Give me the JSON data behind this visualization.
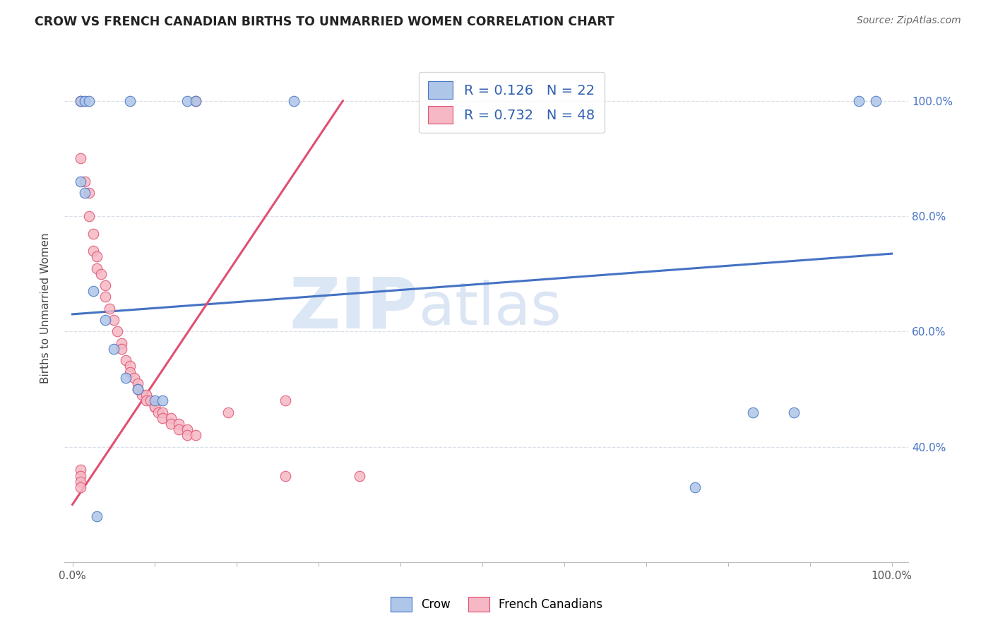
{
  "title": "CROW VS FRENCH CANADIAN BIRTHS TO UNMARRIED WOMEN CORRELATION CHART",
  "source": "Source: ZipAtlas.com",
  "ylabel": "Births to Unmarried Women",
  "watermark_zip": "ZIP",
  "watermark_atlas": "atlas",
  "crow_R": 0.126,
  "crow_N": 22,
  "fc_R": 0.732,
  "fc_N": 48,
  "crow_color": "#aec6e8",
  "fc_color": "#f5b8c4",
  "crow_edge_color": "#4472c4",
  "fc_edge_color": "#e05070",
  "crow_scatter": [
    [
      1.0,
      100.0
    ],
    [
      1.5,
      100.0
    ],
    [
      2.0,
      100.0
    ],
    [
      7.0,
      100.0
    ],
    [
      14.0,
      100.0
    ],
    [
      15.0,
      100.0
    ],
    [
      27.0,
      100.0
    ],
    [
      96.0,
      100.0
    ],
    [
      98.0,
      100.0
    ],
    [
      1.0,
      86.0
    ],
    [
      1.5,
      84.0
    ],
    [
      2.5,
      67.0
    ],
    [
      4.0,
      62.0
    ],
    [
      5.0,
      57.0
    ],
    [
      6.5,
      52.0
    ],
    [
      8.0,
      50.0
    ],
    [
      10.0,
      48.0
    ],
    [
      11.0,
      48.0
    ],
    [
      83.0,
      46.0
    ],
    [
      88.0,
      46.0
    ],
    [
      76.0,
      33.0
    ],
    [
      3.0,
      28.0
    ]
  ],
  "fc_scatter": [
    [
      1.0,
      100.0
    ],
    [
      15.0,
      100.0
    ],
    [
      1.0,
      90.0
    ],
    [
      1.5,
      86.0
    ],
    [
      2.0,
      84.0
    ],
    [
      2.0,
      80.0
    ],
    [
      2.5,
      77.0
    ],
    [
      2.5,
      74.0
    ],
    [
      3.0,
      73.0
    ],
    [
      3.0,
      71.0
    ],
    [
      3.5,
      70.0
    ],
    [
      4.0,
      68.0
    ],
    [
      4.0,
      66.0
    ],
    [
      4.5,
      64.0
    ],
    [
      5.0,
      62.0
    ],
    [
      5.5,
      60.0
    ],
    [
      6.0,
      58.0
    ],
    [
      6.0,
      57.0
    ],
    [
      6.5,
      55.0
    ],
    [
      7.0,
      54.0
    ],
    [
      7.0,
      53.0
    ],
    [
      7.5,
      52.0
    ],
    [
      8.0,
      51.0
    ],
    [
      8.0,
      50.0
    ],
    [
      8.5,
      49.0
    ],
    [
      9.0,
      49.0
    ],
    [
      9.0,
      48.0
    ],
    [
      9.5,
      48.0
    ],
    [
      10.0,
      47.0
    ],
    [
      10.0,
      47.0
    ],
    [
      10.5,
      46.0
    ],
    [
      11.0,
      46.0
    ],
    [
      11.0,
      45.0
    ],
    [
      12.0,
      45.0
    ],
    [
      12.0,
      44.0
    ],
    [
      13.0,
      44.0
    ],
    [
      13.0,
      43.0
    ],
    [
      14.0,
      43.0
    ],
    [
      14.0,
      42.0
    ],
    [
      15.0,
      42.0
    ],
    [
      19.0,
      46.0
    ],
    [
      26.0,
      48.0
    ],
    [
      26.0,
      35.0
    ],
    [
      35.0,
      35.0
    ],
    [
      1.0,
      36.0
    ],
    [
      1.0,
      35.0
    ],
    [
      1.0,
      34.0
    ],
    [
      1.0,
      33.0
    ]
  ],
  "crow_line_x": [
    0,
    100
  ],
  "crow_line_y": [
    63.0,
    73.5
  ],
  "fc_line_x": [
    0,
    33
  ],
  "fc_line_y": [
    30.0,
    100.0
  ],
  "xlim": [
    -1,
    102
  ],
  "ylim": [
    20,
    108
  ],
  "x_ticks": [
    0,
    10,
    20,
    30,
    40,
    50,
    60,
    70,
    80,
    90,
    100
  ],
  "x_tick_labels": [
    "0.0%",
    "",
    "",
    "",
    "",
    "",
    "",
    "",
    "",
    "",
    "100.0%"
  ],
  "y_ticks": [
    40,
    60,
    80,
    100
  ],
  "y_tick_labels": [
    "40.0%",
    "60.0%",
    "80.0%",
    "100.0%"
  ],
  "grid_color": "#d8dfe8",
  "bottom_legend_labels": [
    "Crow",
    "French Canadians"
  ],
  "figsize": [
    14.06,
    8.92
  ],
  "dpi": 100
}
